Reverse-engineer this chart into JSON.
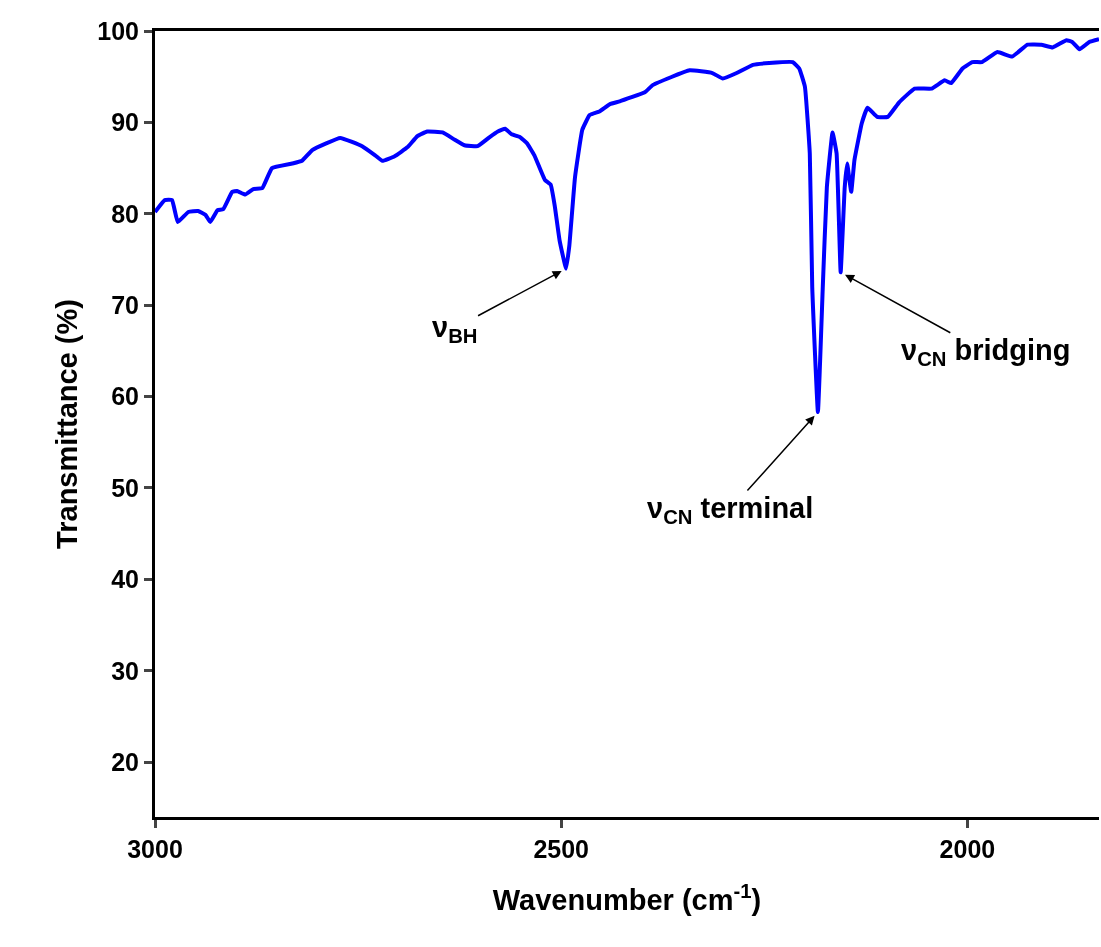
{
  "chart_data": {
    "type": "line",
    "xlabel": "Wavenumber (cm$^{-1}$)",
    "ylabel": "Transmittance (%)",
    "x": [
      3000,
      2988,
      2979,
      2972,
      2959,
      2947,
      2938,
      2932,
      2923,
      2916,
      2905,
      2899,
      2889,
      2879,
      2868,
      2856,
      2831,
      2819,
      2806,
      2772,
      2745,
      2729,
      2720,
      2705,
      2689,
      2677,
      2665,
      2646,
      2631,
      2619,
      2603,
      2588,
      2578,
      2569,
      2561,
      2551,
      2542,
      2533,
      2520,
      2513,
      2508,
      2502,
      2494,
      2490,
      2483,
      2474,
      2465,
      2453,
      2440,
      2428,
      2397,
      2387,
      2342,
      2314,
      2301,
      2284,
      2264,
      2244,
      2215,
      2207,
      2200,
      2194,
      2191,
      2184,
      2178,
      2173,
      2166,
      2161,
      2156,
      2151,
      2148,
      2143,
      2139,
      2130,
      2123,
      2111,
      2098,
      2084,
      2065,
      2044,
      2028,
      2020,
      2006,
      1994,
      1982,
      1963,
      1945,
      1926,
      1909,
      1895,
      1878,
      1871,
      1862,
      1850,
      1838
    ],
    "series": [
      {
        "color": "#0000ff",
        "values": [
          80.2,
          81.5,
          81.5,
          79.1,
          80.2,
          80.3,
          79.9,
          79.1,
          80.4,
          80.5,
          82.4,
          82.5,
          82.1,
          82.7,
          82.8,
          85.0,
          85.5,
          85.8,
          87.0,
          88.3,
          87.4,
          86.4,
          85.8,
          86.3,
          87.3,
          88.5,
          89.0,
          88.9,
          88.1,
          87.5,
          87.4,
          88.4,
          89.0,
          89.3,
          88.7,
          88.4,
          87.7,
          86.4,
          83.7,
          83.2,
          80.9,
          77.1,
          74.0,
          76.5,
          84.0,
          89.2,
          90.8,
          91.2,
          92.0,
          92.3,
          93.3,
          94.1,
          95.7,
          95.4,
          94.8,
          95.4,
          96.3,
          96.5,
          96.6,
          95.9,
          93.9,
          86.6,
          72.0,
          58.3,
          72.0,
          82.9,
          88.9,
          86.6,
          73.6,
          82.9,
          85.5,
          82.4,
          85.9,
          89.9,
          91.6,
          90.6,
          90.6,
          92.2,
          93.7,
          93.7,
          94.6,
          94.3,
          95.9,
          96.6,
          96.6,
          97.7,
          97.2,
          98.5,
          98.5,
          98.2,
          99.0,
          98.8,
          98.0,
          98.8,
          99.1
        ]
      }
    ],
    "xlim": [
      3000,
      1838
    ],
    "xticks": [
      3000,
      2500,
      2000
    ],
    "ylim": [
      14,
      100
    ],
    "yticks": [
      20,
      30,
      40,
      50,
      60,
      70,
      80,
      90,
      100
    ],
    "marker": "none",
    "line_style": "solid",
    "annotations": [
      {
        "text": "ν$_{BH}$",
        "x": 2494,
        "y": 74.0
      },
      {
        "text": "ν$_{CN}$ terminal",
        "x": 2184,
        "y": 58.3
      },
      {
        "text": "ν$_{CN}$ bridging",
        "x": 2156,
        "y": 73.6
      }
    ]
  }
}
